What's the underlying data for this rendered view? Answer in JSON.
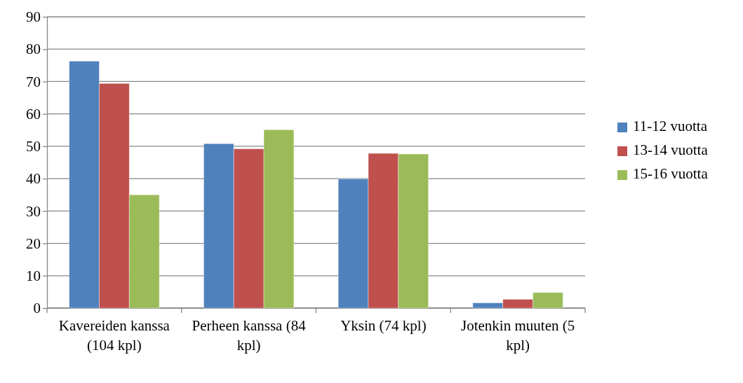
{
  "chart_data": {
    "type": "bar",
    "categories": [
      "Kavereiden kanssa (104 kpl)",
      "Perheen kanssa (84 kpl)",
      "Yksin (74 kpl)",
      "Jotenkin muuten (5 kpl)"
    ],
    "series": [
      {
        "name": "11-12 vuotta",
        "color": "#4f81bd",
        "values": [
          76.3,
          50.8,
          39.9,
          1.6
        ]
      },
      {
        "name": "13-14 vuotta",
        "color": "#c0504d",
        "values": [
          69.4,
          49.2,
          47.8,
          2.7
        ]
      },
      {
        "name": "15-16 vuotta",
        "color": "#9bbb59",
        "values": [
          35.0,
          55.1,
          47.6,
          4.8
        ]
      }
    ],
    "ylim": [
      0,
      90
    ],
    "yticks": [
      0,
      10,
      20,
      30,
      40,
      50,
      60,
      70,
      80,
      90
    ],
    "grid": "y",
    "legend": "right"
  }
}
